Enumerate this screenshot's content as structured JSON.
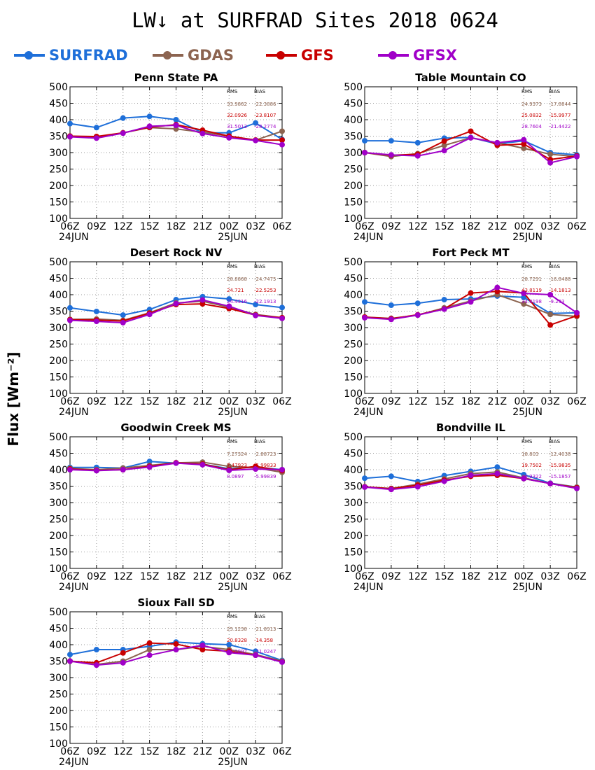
{
  "title": "LW↓ at SURFRAD Sites    2018 0624",
  "ylabel": "Flux [Wm⁻²]",
  "legend": [
    {
      "name": "SURFRAD",
      "color": "#1e6fd9"
    },
    {
      "name": "GDAS",
      "color": "#8c6450"
    },
    {
      "name": "GFS",
      "color": "#c80000"
    },
    {
      "name": "GFSX",
      "color": "#a000c8"
    }
  ],
  "stats_header": {
    "rms": "RMS",
    "bias": "BIAS"
  },
  "chart_data": [
    {
      "type": "line",
      "title": "Penn State PA",
      "x": [
        "06Z",
        "09Z",
        "12Z",
        "15Z",
        "18Z",
        "21Z",
        "00Z",
        "03Z",
        "06Z"
      ],
      "date_labels": [
        "24JUN",
        "25JUN"
      ],
      "ylim": [
        100,
        500
      ],
      "yticks": [
        100,
        150,
        200,
        250,
        300,
        350,
        400,
        450,
        500
      ],
      "grid": true,
      "series": [
        {
          "name": "SURFRAD",
          "values": [
            388,
            376,
            405,
            410,
            400,
            360,
            360,
            390,
            340
          ]
        },
        {
          "name": "GDAS",
          "values": [
            350,
            347,
            360,
            376,
            372,
            362,
            350,
            338,
            365
          ]
        },
        {
          "name": "GFS",
          "values": [
            350,
            349,
            360,
            377,
            385,
            368,
            350,
            338,
            338
          ]
        },
        {
          "name": "GFSX",
          "values": [
            348,
            344,
            359,
            380,
            383,
            358,
            345,
            337,
            324
          ]
        }
      ],
      "stats": [
        {
          "rms": "33.9862",
          "bias": "-22.3886"
        },
        {
          "rms": "32.0926",
          "bias": "-23.8107"
        },
        {
          "rms": "31.5013",
          "bias": "-28.2774"
        }
      ]
    },
    {
      "type": "line",
      "title": "Table Mountain CO",
      "x": [
        "06Z",
        "09Z",
        "12Z",
        "15Z",
        "18Z",
        "21Z",
        "00Z",
        "03Z",
        "06Z"
      ],
      "date_labels": [
        "24JUN",
        "25JUN"
      ],
      "ylim": [
        100,
        500
      ],
      "yticks": [
        100,
        150,
        200,
        250,
        300,
        350,
        400,
        450,
        500
      ],
      "grid": true,
      "series": [
        {
          "name": "SURFRAD",
          "values": [
            336,
            336,
            330,
            344,
            346,
            326,
            336,
            300,
            293
          ]
        },
        {
          "name": "GDAS",
          "values": [
            300,
            288,
            297,
            322,
            345,
            330,
            313,
            295,
            288
          ]
        },
        {
          "name": "GFS",
          "values": [
            300,
            292,
            295,
            335,
            365,
            322,
            326,
            279,
            290
          ]
        },
        {
          "name": "GFSX",
          "values": [
            300,
            293,
            290,
            306,
            345,
            330,
            339,
            269,
            288
          ]
        }
      ],
      "stats": [
        {
          "rms": "24.9373",
          "bias": "-17.8844"
        },
        {
          "rms": "25.0832",
          "bias": "-15.9977"
        },
        {
          "rms": "28.7604",
          "bias": "-21.4422"
        }
      ]
    },
    {
      "type": "line",
      "title": "Desert Rock NV",
      "x": [
        "06Z",
        "09Z",
        "12Z",
        "15Z",
        "18Z",
        "21Z",
        "00Z",
        "03Z",
        "06Z"
      ],
      "date_labels": [
        "24JUN",
        "25JUN"
      ],
      "ylim": [
        100,
        500
      ],
      "yticks": [
        100,
        150,
        200,
        250,
        300,
        350,
        400,
        450,
        500
      ],
      "grid": true,
      "series": [
        {
          "name": "SURFRAD",
          "values": [
            360,
            349,
            338,
            355,
            385,
            394,
            387,
            370,
            361
          ]
        },
        {
          "name": "GDAS",
          "values": [
            325,
            326,
            322,
            345,
            375,
            380,
            362,
            340,
            330
          ]
        },
        {
          "name": "GFS",
          "values": [
            324,
            323,
            320,
            344,
            370,
            372,
            358,
            338,
            330
          ]
        },
        {
          "name": "GFSX",
          "values": [
            322,
            319,
            315,
            340,
            373,
            384,
            365,
            337,
            328
          ]
        }
      ],
      "stats": [
        {
          "rms": "28.8868",
          "bias": "-24.7475"
        },
        {
          "rms": "24.721",
          "bias": "-22.5253"
        },
        {
          "rms": "24.4316",
          "bias": "-22.1913"
        }
      ]
    },
    {
      "type": "line",
      "title": "Fort Peck MT",
      "x": [
        "06Z",
        "09Z",
        "12Z",
        "15Z",
        "18Z",
        "21Z",
        "00Z",
        "03Z",
        "06Z"
      ],
      "date_labels": [
        "24JUN",
        "25JUN"
      ],
      "ylim": [
        100,
        500
      ],
      "yticks": [
        100,
        150,
        200,
        250,
        300,
        350,
        400,
        450,
        500
      ],
      "grid": true,
      "series": [
        {
          "name": "SURFRAD",
          "values": [
            378,
            368,
            374,
            385,
            387,
            396,
            392,
            343,
            345
          ]
        },
        {
          "name": "GDAS",
          "values": [
            332,
            328,
            338,
            360,
            381,
            400,
            372,
            340,
            334
          ]
        },
        {
          "name": "GFS",
          "values": [
            332,
            327,
            339,
            357,
            405,
            410,
            405,
            308,
            336
          ]
        },
        {
          "name": "GFSX",
          "values": [
            330,
            325,
            338,
            356,
            378,
            422,
            404,
            400,
            345
          ]
        }
      ],
      "stats": [
        {
          "rms": "28.7291",
          "bias": "-16.8488"
        },
        {
          "rms": "43.8119",
          "bias": "-14.1813"
        },
        {
          "rms": "34.8198",
          "bias": "-9.293"
        }
      ]
    },
    {
      "type": "line",
      "title": "Goodwin Creek MS",
      "x": [
        "06Z",
        "09Z",
        "12Z",
        "15Z",
        "18Z",
        "21Z",
        "00Z",
        "03Z",
        "06Z"
      ],
      "date_labels": [
        "24JUN",
        "25JUN"
      ],
      "ylim": [
        100,
        500
      ],
      "yticks": [
        100,
        150,
        200,
        250,
        300,
        350,
        400,
        450,
        500
      ],
      "grid": true,
      "series": [
        {
          "name": "SURFRAD",
          "values": [
            407,
            407,
            405,
            425,
            420,
            417,
            403,
            408,
            400
          ]
        },
        {
          "name": "GDAS",
          "values": [
            404,
            400,
            405,
            413,
            421,
            423,
            410,
            406,
            392
          ]
        },
        {
          "name": "GFS",
          "values": [
            402,
            398,
            400,
            410,
            421,
            417,
            400,
            410,
            397
          ]
        },
        {
          "name": "GFSX",
          "values": [
            400,
            397,
            400,
            408,
            420,
            415,
            398,
            402,
            400
          ]
        }
      ],
      "stats": [
        {
          "rms": "7.27324",
          "bias": "-2.88723"
        },
        {
          "rms": "7.47923",
          "bias": "-5.99833"
        },
        {
          "rms": "8.0897",
          "bias": "-5.99839"
        }
      ]
    },
    {
      "type": "line",
      "title": "Bondville IL",
      "x": [
        "06Z",
        "09Z",
        "12Z",
        "15Z",
        "18Z",
        "21Z",
        "00Z",
        "03Z",
        "06Z"
      ],
      "date_labels": [
        "24JUN",
        "25JUN"
      ],
      "ylim": [
        100,
        500
      ],
      "yticks": [
        100,
        150,
        200,
        250,
        300,
        350,
        400,
        450,
        500
      ],
      "grid": true,
      "series": [
        {
          "name": "SURFRAD",
          "values": [
            374,
            380,
            364,
            382,
            395,
            408,
            385,
            359,
            347
          ]
        },
        {
          "name": "GDAS",
          "values": [
            348,
            343,
            356,
            372,
            388,
            393,
            375,
            358,
            347
          ]
        },
        {
          "name": "GFS",
          "values": [
            348,
            342,
            353,
            368,
            380,
            383,
            373,
            358,
            345
          ]
        },
        {
          "name": "GFSX",
          "values": [
            347,
            340,
            348,
            365,
            383,
            388,
            373,
            358,
            343
          ]
        }
      ],
      "stats": [
        {
          "rms": "18.803",
          "bias": "-12.4038"
        },
        {
          "rms": "19.7502",
          "bias": "-15.9835"
        },
        {
          "rms": "19.9322",
          "bias": "-15.1857"
        }
      ]
    },
    {
      "type": "line",
      "title": "Sioux Fall SD",
      "x": [
        "06Z",
        "09Z",
        "12Z",
        "15Z",
        "18Z",
        "21Z",
        "00Z",
        "03Z",
        "06Z"
      ],
      "date_labels": [
        "24JUN",
        "25JUN"
      ],
      "ylim": [
        100,
        500
      ],
      "yticks": [
        100,
        150,
        200,
        250,
        300,
        350,
        400,
        450,
        500
      ],
      "grid": true,
      "series": [
        {
          "name": "SURFRAD",
          "values": [
            370,
            385,
            385,
            395,
            408,
            403,
            400,
            380,
            352
          ]
        },
        {
          "name": "GDAS",
          "values": [
            350,
            340,
            350,
            385,
            385,
            395,
            385,
            370,
            350
          ]
        },
        {
          "name": "GFS",
          "values": [
            350,
            345,
            375,
            405,
            402,
            385,
            380,
            368,
            348
          ]
        },
        {
          "name": "GFSX",
          "values": [
            350,
            338,
            345,
            368,
            385,
            398,
            376,
            368,
            347
          ]
        }
      ],
      "stats": [
        {
          "rms": "25.1238",
          "bias": "-21.8913"
        },
        {
          "rms": "20.8328",
          "bias": "-14.358"
        },
        {
          "rms": "28.0897",
          "bias": "-21.0247"
        }
      ]
    }
  ]
}
